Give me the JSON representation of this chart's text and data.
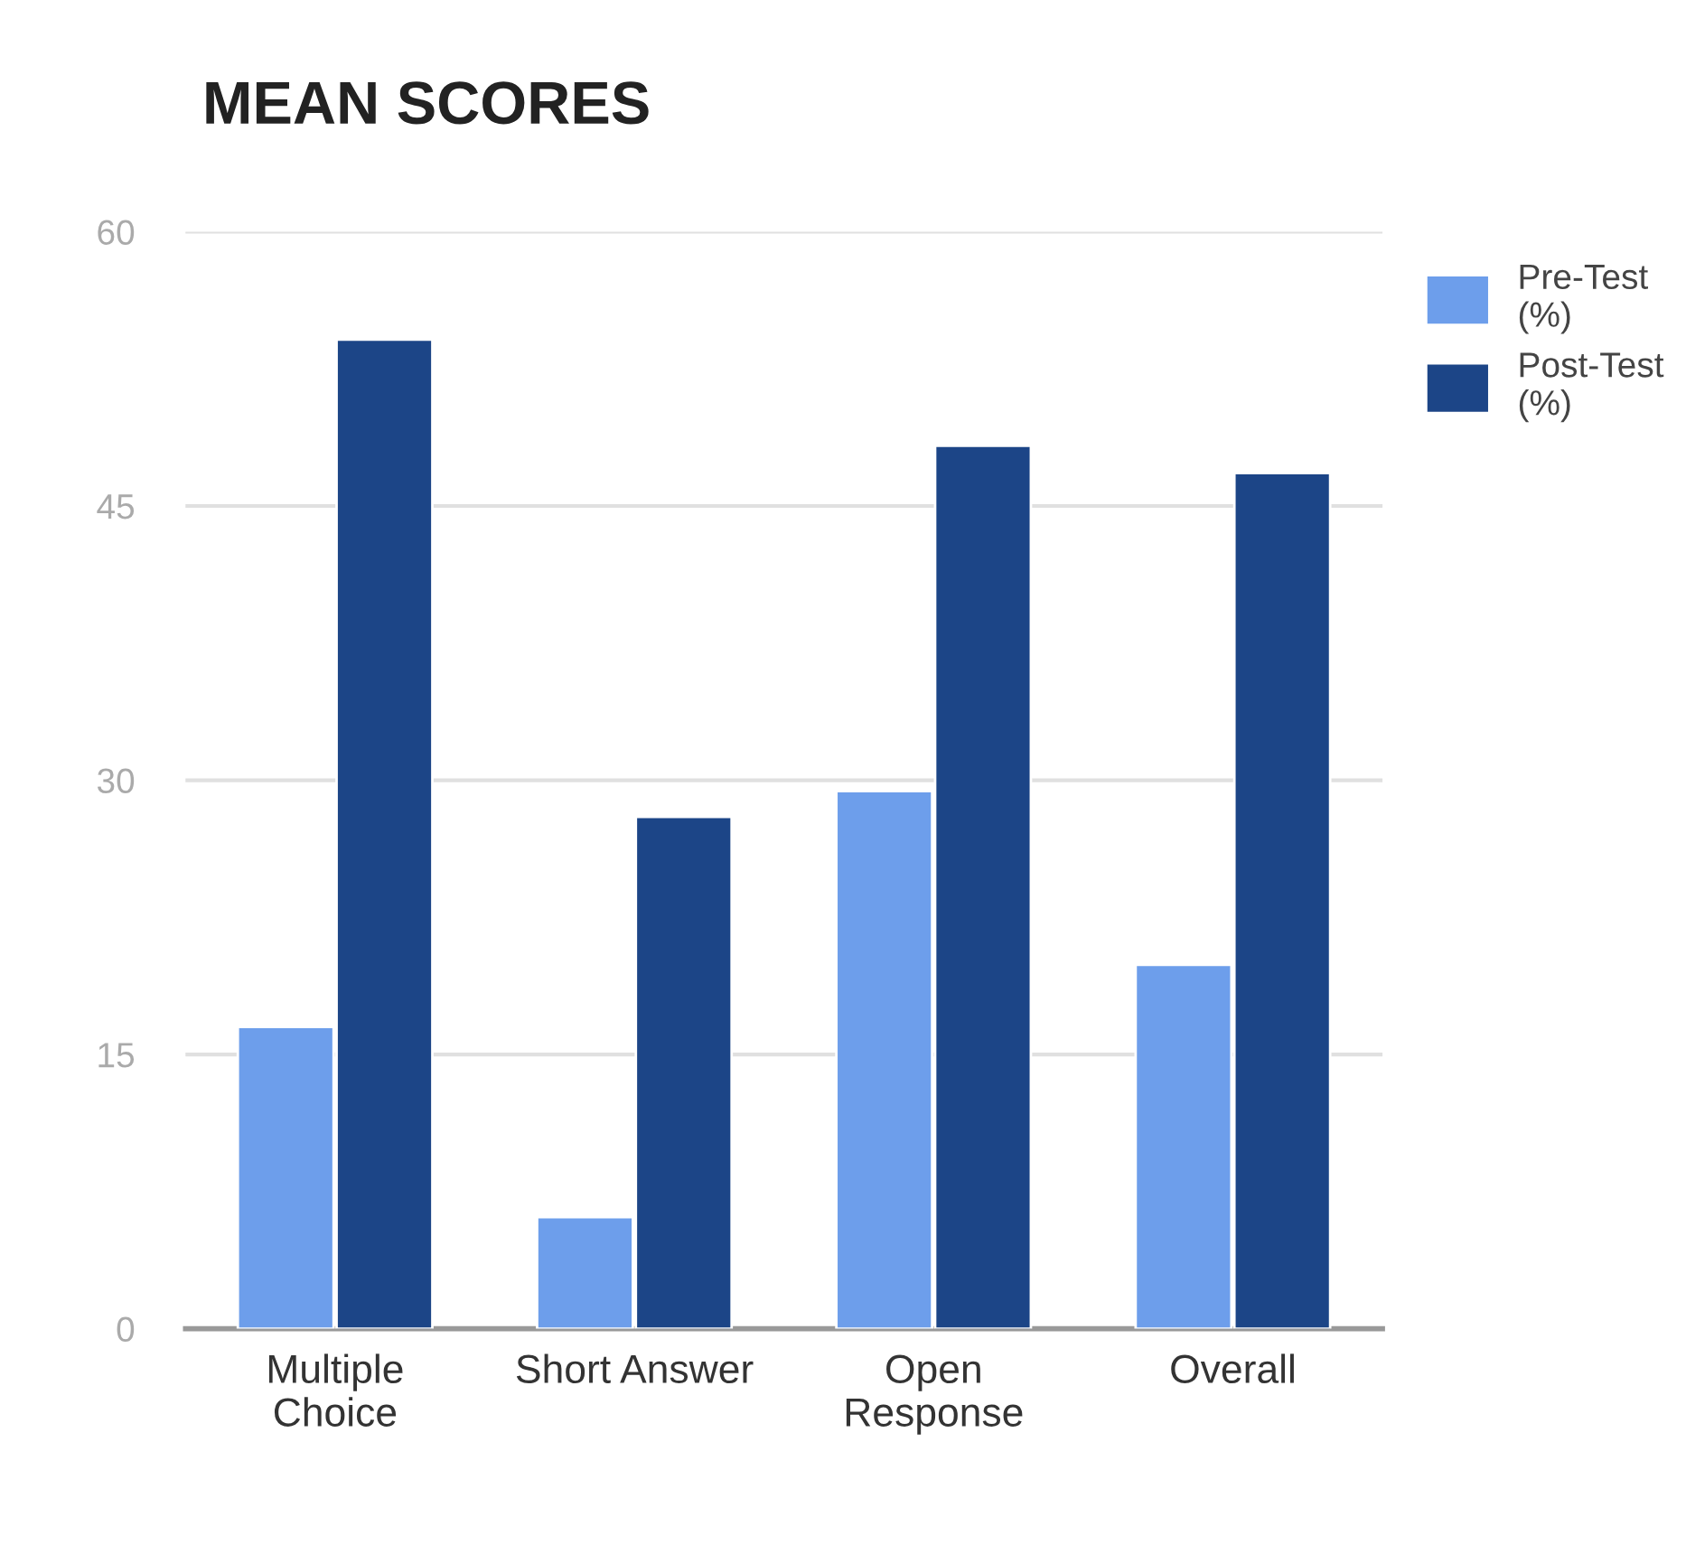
{
  "chart_data": {
    "type": "bar",
    "title": "MEAN SCORES",
    "categories": [
      "Multiple\nChoice",
      "Short Answer",
      "Open\nResponse",
      "Overall"
    ],
    "series": [
      {
        "name": "Pre-Test\n(%)",
        "color": "#6d9eeb",
        "values": [
          16.5,
          6.1,
          29.4,
          19.9
        ]
      },
      {
        "name": "Post-Test\n(%)",
        "color": "#1c4587",
        "values": [
          54.1,
          28.0,
          48.3,
          46.8
        ]
      }
    ],
    "ylim": [
      0,
      60
    ],
    "yticks": [
      0,
      15,
      30,
      45,
      60
    ],
    "grid": "y",
    "legend": "top right"
  }
}
